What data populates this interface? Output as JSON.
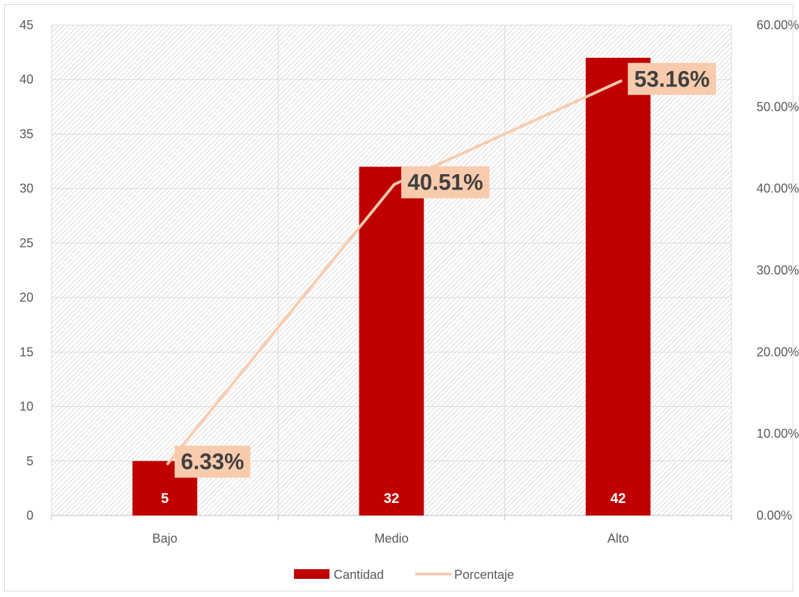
{
  "chart_data": {
    "type": "bar",
    "categories": [
      "Bajo",
      "Medio",
      "Alto"
    ],
    "series": [
      {
        "name": "Cantidad",
        "type": "bar",
        "axis": "left",
        "values": [
          5,
          32,
          42
        ],
        "data_labels": [
          "5",
          "32",
          "42"
        ],
        "color": "#c00000"
      },
      {
        "name": "Porcentaje",
        "type": "line",
        "axis": "right",
        "values": [
          6.33,
          40.51,
          53.16
        ],
        "data_labels": [
          "6.33%",
          "40.51%",
          "53.16%"
        ],
        "color": "#f8cbad"
      }
    ],
    "y_left": {
      "min": 0,
      "max": 45,
      "step": 5,
      "tick_labels": [
        "0",
        "5",
        "10",
        "15",
        "20",
        "25",
        "30",
        "35",
        "40",
        "45"
      ]
    },
    "y_right": {
      "min": 0,
      "max": 60,
      "step": 10,
      "tick_labels": [
        "0.00%",
        "10.00%",
        "20.00%",
        "30.00%",
        "40.00%",
        "50.00%",
        "60.00%"
      ]
    },
    "grid": true,
    "plot_background": "hatched",
    "legend": {
      "position": "bottom",
      "entries": [
        "Cantidad",
        "Porcentaje"
      ]
    }
  }
}
